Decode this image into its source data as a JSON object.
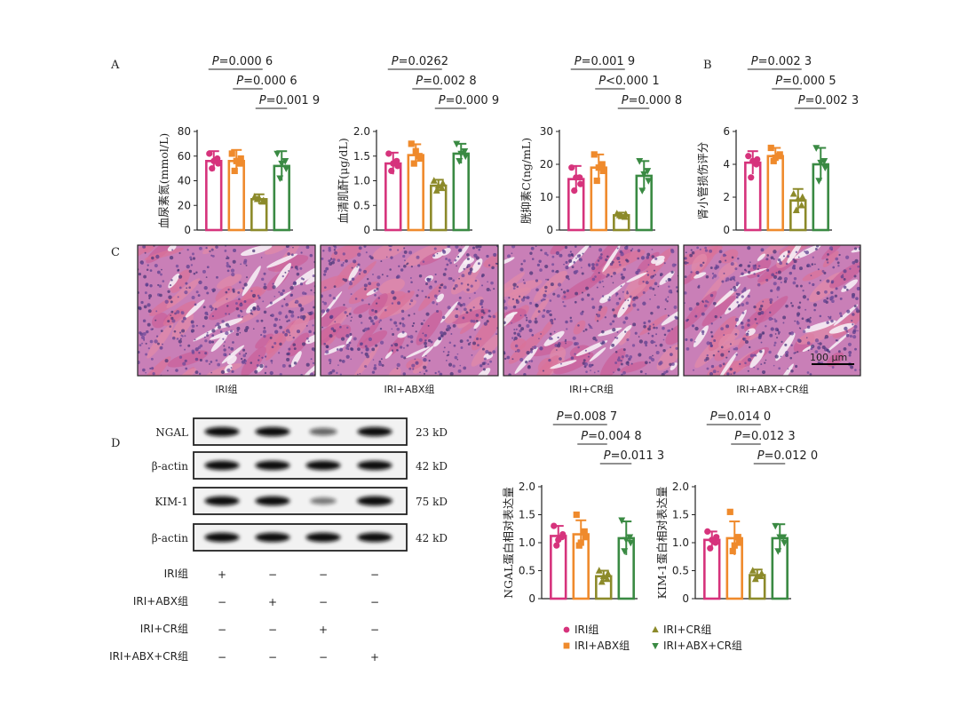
{
  "panel_labels": {
    "A": "A",
    "B": "B",
    "C": "C",
    "D": "D"
  },
  "groups": [
    "IRI组",
    "IRI+ABX组",
    "IRI+CR组",
    "IRI+ABX+CR组"
  ],
  "colors": {
    "IRI": "#d6337c",
    "IRI_ABX": "#ef8a2c",
    "IRI_CR": "#8c8a2a",
    "IRI_ABX_CR": "#3a8a43",
    "western_lane_bg": "#f2f2f2",
    "histo_base": "#c97fb7"
  },
  "marker_icons": [
    "circle-icon",
    "square-icon",
    "triangle-up-icon",
    "triangle-down-icon"
  ],
  "legend": {
    "items": [
      "IRI组",
      "IRI+ABX组",
      "IRI+CR组",
      "IRI+ABX+CR组"
    ]
  },
  "histology": {
    "captions": [
      "IRI组",
      "IRI+ABX组",
      "IRI+CR组",
      "IRI+ABX+CR组"
    ],
    "scale_bar": "100 μm"
  },
  "western": {
    "bands": [
      {
        "label": "NGAL",
        "size": "23 kD",
        "intensity": [
          0.95,
          0.95,
          0.45,
          0.95
        ]
      },
      {
        "label": "β-actin",
        "size": "42 kD",
        "intensity": [
          0.95,
          0.95,
          0.95,
          0.95
        ]
      },
      {
        "label": "KIM-1",
        "size": "75 kD",
        "intensity": [
          0.95,
          0.95,
          0.35,
          1.0
        ]
      },
      {
        "label": "β-actin",
        "size": "42 kD",
        "intensity": [
          0.95,
          0.95,
          0.95,
          0.95
        ]
      }
    ],
    "group_rows": [
      {
        "label": "IRI组",
        "signs": [
          "+",
          "−",
          "−",
          "−"
        ]
      },
      {
        "label": "IRI+ABX组",
        "signs": [
          "−",
          "+",
          "−",
          "−"
        ]
      },
      {
        "label": "IRI+CR组",
        "signs": [
          "−",
          "−",
          "+",
          "−"
        ]
      },
      {
        "label": "IRI+ABX+CR组",
        "signs": [
          "−",
          "−",
          "−",
          "+"
        ]
      }
    ]
  },
  "chart_data": [
    {
      "type": "bar",
      "id": "bun",
      "panel": "A",
      "ylabel": "血尿素氮(mmol/L)",
      "ylim": [
        0,
        80
      ],
      "yticks": [
        "0",
        "20",
        "40",
        "60",
        "80"
      ],
      "categories": [
        "IRI组",
        "IRI+ABX组",
        "IRI+CR组",
        "IRI+ABX+CR组"
      ],
      "values": [
        56,
        56,
        25,
        52
      ],
      "errors": [
        8,
        9,
        4,
        12
      ],
      "points": [
        [
          62,
          58,
          50,
          54,
          56
        ],
        [
          62,
          54,
          48,
          58,
          56
        ],
        [
          27,
          23,
          25,
          24,
          26
        ],
        [
          62,
          56,
          42,
          50,
          54
        ]
      ],
      "comparisons": [
        {
          "from": 0,
          "to": 2,
          "italic": "P",
          "rest": "=0.000 6"
        },
        {
          "from": 1,
          "to": 2,
          "italic": "P",
          "rest": "=0.000 6"
        },
        {
          "from": 2,
          "to": 3,
          "italic": "P",
          "rest": "=0.001 9"
        }
      ]
    },
    {
      "type": "bar",
      "id": "scr",
      "panel": "",
      "ylabel": "血清肌酐(μg/dL)",
      "ylim": [
        0,
        2.0
      ],
      "yticks": [
        "0",
        "0.5",
        "1.0",
        "1.5",
        "2.0"
      ],
      "categories": [
        "IRI组",
        "IRI+ABX组",
        "IRI+CR组",
        "IRI+ABX+CR组"
      ],
      "values": [
        1.35,
        1.52,
        0.9,
        1.55
      ],
      "errors": [
        0.22,
        0.22,
        0.12,
        0.2
      ],
      "points": [
        [
          1.55,
          1.4,
          1.2,
          1.3,
          1.35
        ],
        [
          1.75,
          1.5,
          1.35,
          1.45,
          1.6
        ],
        [
          1.0,
          0.85,
          0.8,
          0.95,
          0.9
        ],
        [
          1.75,
          1.6,
          1.4,
          1.5,
          1.55
        ]
      ],
      "comparisons": [
        {
          "from": 0,
          "to": 2,
          "italic": "P",
          "rest": "=0.0262"
        },
        {
          "from": 1,
          "to": 2,
          "italic": "P",
          "rest": "=0.002 8"
        },
        {
          "from": 2,
          "to": 3,
          "italic": "P",
          "rest": "=0.000 9"
        }
      ]
    },
    {
      "type": "bar",
      "id": "cystatin",
      "panel": "",
      "ylabel": "胱抑素C(ng/mL)",
      "ylim": [
        0,
        30
      ],
      "yticks": [
        "0",
        "10",
        "20",
        "30"
      ],
      "categories": [
        "IRI组",
        "IRI+ABX组",
        "IRI+CR组",
        "IRI+ABX+CR组"
      ],
      "values": [
        15.5,
        19,
        4.5,
        16.5
      ],
      "errors": [
        4,
        4,
        0.8,
        4.5
      ],
      "points": [
        [
          19,
          16,
          12,
          14,
          16
        ],
        [
          23,
          20,
          15,
          18,
          19
        ],
        [
          5,
          4,
          4.5,
          4.8,
          4.2
        ],
        [
          21,
          18,
          12,
          15,
          17
        ]
      ],
      "comparisons": [
        {
          "from": 0,
          "to": 2,
          "italic": "P",
          "rest": "=0.001 9"
        },
        {
          "from": 1,
          "to": 2,
          "italic": "P",
          "rest": "<0.000 1"
        },
        {
          "from": 2,
          "to": 3,
          "italic": "P",
          "rest": "=0.000 8"
        }
      ]
    },
    {
      "type": "bar",
      "id": "tubular",
      "panel": "B",
      "ylabel": "肾小管损伤评分",
      "ylim": [
        0,
        6
      ],
      "yticks": [
        "0",
        "2",
        "4",
        "6"
      ],
      "categories": [
        "IRI组",
        "IRI+ABX组",
        "IRI+CR组",
        "IRI+ABX+CR组"
      ],
      "values": [
        4.1,
        4.5,
        1.8,
        4.0
      ],
      "errors": [
        0.7,
        0.5,
        0.7,
        1.0
      ],
      "points": [
        [
          4.5,
          4.0,
          3.2,
          4.3,
          4.2
        ],
        [
          5.0,
          4.5,
          4.2,
          4.6,
          4.4
        ],
        [
          2.2,
          1.5,
          1.2,
          2.0,
          1.9
        ],
        [
          5.0,
          4.2,
          3.0,
          3.8,
          4.1
        ]
      ],
      "comparisons": [
        {
          "from": 0,
          "to": 2,
          "italic": "P",
          "rest": "=0.002 3"
        },
        {
          "from": 1,
          "to": 2,
          "italic": "P",
          "rest": "=0.000 5"
        },
        {
          "from": 2,
          "to": 3,
          "italic": "P",
          "rest": "=0.002 3"
        }
      ]
    },
    {
      "type": "bar",
      "id": "ngal",
      "panel": "",
      "ylabel": "NGAL蛋白相对表达量",
      "ylim": [
        0,
        2.0
      ],
      "yticks": [
        "0",
        "0.5",
        "1.0",
        "1.5",
        "2.0"
      ],
      "categories": [
        "IRI组",
        "IRI+ABX组",
        "IRI+CR组",
        "IRI+ABX+CR组"
      ],
      "values": [
        1.12,
        1.15,
        0.4,
        1.08
      ],
      "errors": [
        0.18,
        0.25,
        0.1,
        0.3
      ],
      "points": [
        [
          1.3,
          1.1,
          0.95,
          1.15,
          1.05
        ],
        [
          1.5,
          1.2,
          0.95,
          1.1,
          1.0
        ],
        [
          0.5,
          0.35,
          0.3,
          0.45,
          0.4
        ],
        [
          1.4,
          1.1,
          0.85,
          1.0,
          1.05
        ]
      ],
      "comparisons": [
        {
          "from": 0,
          "to": 2,
          "italic": "P",
          "rest": "=0.008 7"
        },
        {
          "from": 1,
          "to": 2,
          "italic": "P",
          "rest": "=0.004 8"
        },
        {
          "from": 2,
          "to": 3,
          "italic": "P",
          "rest": "=0.011 3"
        }
      ]
    },
    {
      "type": "bar",
      "id": "kim1",
      "panel": "",
      "ylabel": "KIM-1蛋白相对表达量",
      "ylim": [
        0,
        2.0
      ],
      "yticks": [
        "0",
        "0.5",
        "1.0",
        "1.5",
        "2.0"
      ],
      "categories": [
        "IRI组",
        "IRI+ABX组",
        "IRI+CR组",
        "IRI+ABX+CR组"
      ],
      "values": [
        1.05,
        1.08,
        0.42,
        1.08
      ],
      "errors": [
        0.15,
        0.3,
        0.1,
        0.25
      ],
      "points": [
        [
          1.2,
          1.0,
          0.9,
          1.1,
          1.05
        ],
        [
          1.55,
          1.1,
          0.85,
          1.0,
          0.95
        ],
        [
          0.5,
          0.4,
          0.35,
          0.45,
          0.4
        ],
        [
          1.3,
          1.1,
          0.85,
          1.0,
          1.1
        ]
      ],
      "comparisons": [
        {
          "from": 0,
          "to": 2,
          "italic": "P",
          "rest": "=0.014 0"
        },
        {
          "from": 1,
          "to": 2,
          "italic": "P",
          "rest": "=0.012 3"
        },
        {
          "from": 2,
          "to": 3,
          "italic": "P",
          "rest": "=0.012 0"
        }
      ]
    }
  ]
}
